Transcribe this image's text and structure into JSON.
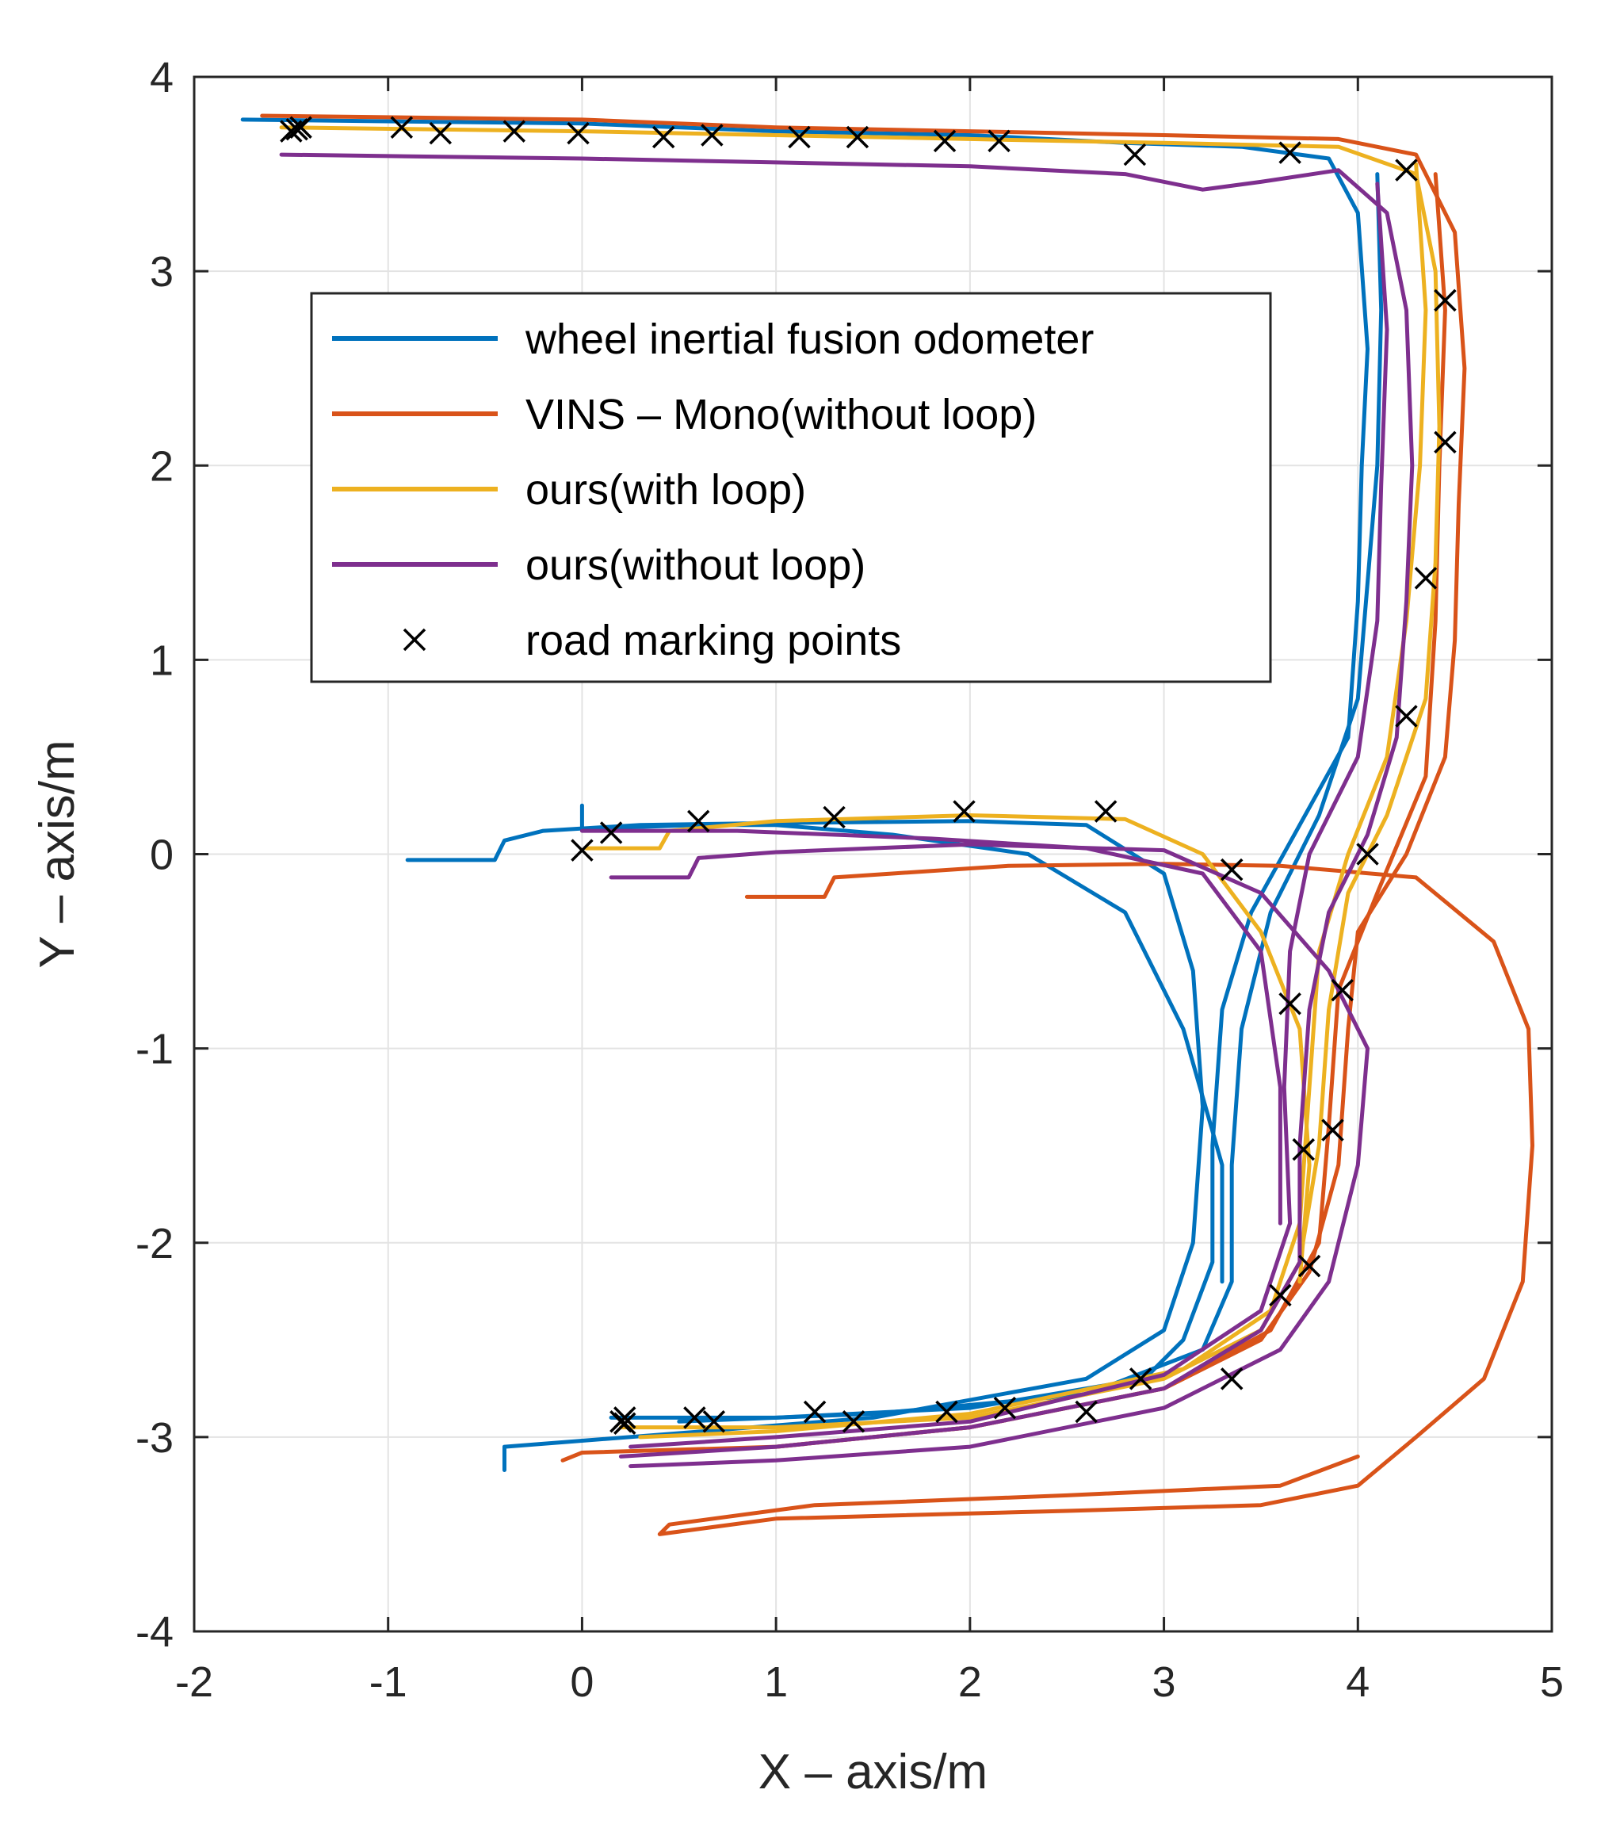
{
  "chart_data": {
    "type": "line",
    "title": "",
    "xlabel": "X – axis/m",
    "ylabel": "Y – axis/m",
    "xlim": [
      -2,
      5
    ],
    "ylim": [
      -4,
      4
    ],
    "xticks": [
      "-2",
      "-1",
      "0",
      "1",
      "2",
      "3",
      "4",
      "5"
    ],
    "yticks": [
      "4",
      "3",
      "2",
      "1",
      "0",
      "-1",
      "-2",
      "-3",
      "-4"
    ],
    "grid": true,
    "legend_position": "upper-left inside axes",
    "series": [
      {
        "name": "wheel inertial fusion odometer",
        "color": "#0072BD",
        "paths": [
          [
            [
              -1.75,
              3.78
            ],
            [
              0,
              3.76
            ],
            [
              1,
              3.72
            ],
            [
              2,
              3.7
            ],
            [
              2.8,
              3.66
            ],
            [
              3.4,
              3.64
            ],
            [
              3.85,
              3.58
            ],
            [
              4.0,
              3.3
            ],
            [
              4.05,
              2.6
            ],
            [
              4.02,
              2.0
            ],
            [
              4.0,
              1.3
            ],
            [
              3.95,
              0.6
            ],
            [
              3.7,
              0.15
            ],
            [
              3.45,
              -0.3
            ],
            [
              3.3,
              -0.8
            ],
            [
              3.25,
              -1.5
            ],
            [
              3.25,
              -2.1
            ],
            [
              3.1,
              -2.5
            ],
            [
              2.9,
              -2.7
            ],
            [
              2.0,
              -2.85
            ],
            [
              1.0,
              -2.9
            ],
            [
              0.15,
              -2.9
            ]
          ],
          [
            [
              4.1,
              3.5
            ],
            [
              4.12,
              2.8
            ],
            [
              4.1,
              2.0
            ],
            [
              4.0,
              0.8
            ],
            [
              3.8,
              0.2
            ],
            [
              3.55,
              -0.3
            ],
            [
              3.4,
              -0.9
            ],
            [
              3.35,
              -1.6
            ],
            [
              3.35,
              -2.2
            ],
            [
              3.2,
              -2.55
            ],
            [
              2.6,
              -2.78
            ],
            [
              1.5,
              -2.88
            ],
            [
              0.5,
              -2.92
            ]
          ],
          [
            [
              -0.9,
              -0.03
            ],
            [
              -0.45,
              -0.03
            ],
            [
              -0.4,
              0.07
            ],
            [
              -0.2,
              0.12
            ],
            [
              0.3,
              0.15
            ],
            [
              1.0,
              0.16
            ],
            [
              2.0,
              0.17
            ],
            [
              2.6,
              0.15
            ],
            [
              3.0,
              -0.1
            ],
            [
              3.15,
              -0.6
            ],
            [
              3.2,
              -1.3
            ],
            [
              3.15,
              -2.0
            ],
            [
              3.0,
              -2.45
            ],
            [
              2.6,
              -2.7
            ],
            [
              1.5,
              -2.9
            ],
            [
              0.5,
              -2.98
            ],
            [
              -0.4,
              -3.05
            ],
            [
              -0.4,
              -3.17
            ]
          ],
          [
            [
              0.0,
              0.25
            ],
            [
              0.0,
              0.13
            ],
            [
              0.6,
              0.15
            ],
            [
              1.0,
              0.15
            ],
            [
              1.6,
              0.1
            ],
            [
              2.3,
              0.0
            ],
            [
              2.8,
              -0.3
            ],
            [
              3.1,
              -0.9
            ],
            [
              3.3,
              -1.6
            ],
            [
              3.3,
              -2.2
            ]
          ]
        ]
      },
      {
        "name": "VINS – Mono(without loop)",
        "color": "#D95319",
        "paths": [
          [
            [
              -1.65,
              3.8
            ],
            [
              0,
              3.78
            ],
            [
              1,
              3.74
            ],
            [
              2,
              3.72
            ],
            [
              3.0,
              3.7
            ],
            [
              3.9,
              3.68
            ],
            [
              4.3,
              3.6
            ],
            [
              4.5,
              3.2
            ],
            [
              4.55,
              2.5
            ],
            [
              4.52,
              1.8
            ],
            [
              4.5,
              1.1
            ],
            [
              4.45,
              0.5
            ],
            [
              4.25,
              0.0
            ],
            [
              4.0,
              -0.4
            ],
            [
              3.95,
              -0.9
            ],
            [
              3.9,
              -1.6
            ],
            [
              3.75,
              -2.15
            ],
            [
              3.5,
              -2.5
            ],
            [
              3.0,
              -2.75
            ],
            [
              2.0,
              -2.95
            ],
            [
              1.0,
              -3.05
            ],
            [
              0.0,
              -3.08
            ],
            [
              -0.1,
              -3.12
            ]
          ],
          [
            [
              4.4,
              3.5
            ],
            [
              4.45,
              2.8
            ],
            [
              4.42,
              2.0
            ],
            [
              4.4,
              1.2
            ],
            [
              4.35,
              0.4
            ],
            [
              4.1,
              -0.2
            ],
            [
              3.9,
              -0.7
            ],
            [
              3.85,
              -1.4
            ],
            [
              3.8,
              -2.0
            ],
            [
              3.55,
              -2.45
            ],
            [
              3.0,
              -2.75
            ],
            [
              2.0,
              -2.95
            ],
            [
              1.0,
              -3.05
            ]
          ],
          [
            [
              0.85,
              -0.22
            ],
            [
              1.25,
              -0.22
            ],
            [
              1.3,
              -0.12
            ],
            [
              1.6,
              -0.1
            ],
            [
              2.2,
              -0.06
            ],
            [
              3.0,
              -0.05
            ],
            [
              3.6,
              -0.06
            ],
            [
              4.3,
              -0.12
            ],
            [
              4.7,
              -0.45
            ],
            [
              4.88,
              -0.9
            ],
            [
              4.9,
              -1.5
            ],
            [
              4.85,
              -2.2
            ],
            [
              4.65,
              -2.7
            ],
            [
              4.3,
              -3.0
            ],
            [
              4.0,
              -3.25
            ],
            [
              3.5,
              -3.35
            ],
            [
              2.5,
              -3.38
            ],
            [
              1.0,
              -3.42
            ],
            [
              0.4,
              -3.5
            ],
            [
              0.45,
              -3.45
            ],
            [
              1.2,
              -3.35
            ],
            [
              2.5,
              -3.3
            ],
            [
              3.6,
              -3.25
            ],
            [
              4.0,
              -3.1
            ]
          ]
        ]
      },
      {
        "name": "ours(with loop)",
        "color": "#EDB120",
        "paths": [
          [
            [
              -1.55,
              3.74
            ],
            [
              0,
              3.72
            ],
            [
              1,
              3.7
            ],
            [
              2,
              3.68
            ],
            [
              3.0,
              3.66
            ],
            [
              3.9,
              3.64
            ],
            [
              4.3,
              3.5
            ],
            [
              4.4,
              3.0
            ],
            [
              4.42,
              2.2
            ],
            [
              4.4,
              1.5
            ],
            [
              4.35,
              0.8
            ],
            [
              4.15,
              0.2
            ],
            [
              3.95,
              -0.2
            ],
            [
              3.85,
              -0.8
            ],
            [
              3.8,
              -1.5
            ],
            [
              3.7,
              -2.1
            ],
            [
              3.5,
              -2.45
            ],
            [
              3.0,
              -2.7
            ],
            [
              2.0,
              -2.9
            ],
            [
              1.0,
              -2.95
            ],
            [
              0.2,
              -2.95
            ]
          ],
          [
            [
              4.3,
              3.55
            ],
            [
              4.35,
              2.8
            ],
            [
              4.32,
              2.0
            ],
            [
              4.25,
              1.2
            ],
            [
              4.15,
              0.5
            ],
            [
              3.95,
              0.0
            ],
            [
              3.8,
              -0.5
            ],
            [
              3.75,
              -1.2
            ],
            [
              3.7,
              -1.9
            ],
            [
              3.55,
              -2.35
            ],
            [
              3.1,
              -2.65
            ],
            [
              2.0,
              -2.88
            ],
            [
              1.0,
              -2.97
            ],
            [
              0.3,
              -3.0
            ]
          ],
          [
            [
              0.02,
              0.03
            ],
            [
              0.4,
              0.03
            ],
            [
              0.45,
              0.12
            ],
            [
              1.0,
              0.17
            ],
            [
              2.0,
              0.2
            ],
            [
              2.8,
              0.18
            ],
            [
              3.2,
              0.0
            ],
            [
              3.5,
              -0.4
            ],
            [
              3.7,
              -0.9
            ],
            [
              3.75,
              -1.6
            ],
            [
              3.7,
              -2.2
            ]
          ]
        ]
      },
      {
        "name": "ours(without loop)",
        "color": "#7E2F8E",
        "paths": [
          [
            [
              -1.55,
              3.6
            ],
            [
              0,
              3.58
            ],
            [
              1,
              3.56
            ],
            [
              2,
              3.54
            ],
            [
              2.8,
              3.5
            ],
            [
              3.2,
              3.42
            ],
            [
              3.5,
              3.46
            ],
            [
              3.9,
              3.52
            ],
            [
              4.15,
              3.3
            ],
            [
              4.25,
              2.8
            ],
            [
              4.28,
              2.0
            ],
            [
              4.25,
              1.3
            ],
            [
              4.2,
              0.6
            ],
            [
              4.05,
              0.1
            ],
            [
              3.85,
              -0.3
            ],
            [
              3.75,
              -0.8
            ],
            [
              3.7,
              -1.5
            ],
            [
              3.7,
              -2.1
            ],
            [
              3.5,
              -2.45
            ],
            [
              3.0,
              -2.75
            ],
            [
              2.0,
              -2.95
            ],
            [
              1.0,
              -3.05
            ],
            [
              0.2,
              -3.1
            ]
          ],
          [
            [
              4.1,
              3.45
            ],
            [
              4.15,
              2.7
            ],
            [
              4.12,
              1.9
            ],
            [
              4.1,
              1.2
            ],
            [
              4.0,
              0.5
            ],
            [
              3.75,
              0.0
            ],
            [
              3.65,
              -0.5
            ],
            [
              3.62,
              -1.2
            ],
            [
              3.65,
              -1.9
            ],
            [
              3.5,
              -2.35
            ],
            [
              3.0,
              -2.68
            ],
            [
              2.0,
              -2.92
            ],
            [
              1.0,
              -3.0
            ],
            [
              0.25,
              -3.05
            ]
          ],
          [
            [
              0.15,
              -0.12
            ],
            [
              0.55,
              -0.12
            ],
            [
              0.6,
              -0.02
            ],
            [
              1.0,
              0.01
            ],
            [
              2.0,
              0.05
            ],
            [
              3.0,
              0.02
            ],
            [
              3.5,
              -0.2
            ],
            [
              3.85,
              -0.6
            ],
            [
              4.05,
              -1.0
            ],
            [
              4.0,
              -1.6
            ],
            [
              3.85,
              -2.2
            ],
            [
              3.6,
              -2.55
            ],
            [
              3.0,
              -2.85
            ],
            [
              2.0,
              -3.05
            ],
            [
              1.0,
              -3.12
            ],
            [
              0.25,
              -3.15
            ]
          ],
          [
            [
              0.0,
              0.12
            ],
            [
              0.8,
              0.12
            ],
            [
              1.8,
              0.08
            ],
            [
              2.6,
              0.03
            ],
            [
              3.2,
              -0.1
            ],
            [
              3.5,
              -0.5
            ],
            [
              3.6,
              -1.2
            ],
            [
              3.6,
              -1.9
            ]
          ]
        ]
      }
    ],
    "road_marking_points": {
      "name": "road marking points",
      "marker": "x",
      "color": "#000000",
      "x": [
        -1.5,
        -1.47,
        -1.45,
        -0.93,
        -0.73,
        -0.35,
        -0.02,
        0.42,
        0.67,
        1.12,
        1.42,
        1.87,
        2.15,
        2.85,
        3.65,
        4.25,
        4.45,
        4.45,
        4.35,
        4.25,
        4.05,
        3.35,
        3.65,
        3.92,
        3.72,
        3.87,
        3.75,
        3.6,
        3.35,
        2.88,
        2.6,
        2.18,
        1.88,
        1.4,
        1.2,
        0.68,
        0.58,
        0.22,
        0.22,
        0.2,
        0.0,
        0.15,
        0.6,
        1.3,
        1.97,
        2.7
      ],
      "y": [
        3.72,
        3.73,
        3.74,
        3.74,
        3.71,
        3.72,
        3.71,
        3.69,
        3.7,
        3.69,
        3.69,
        3.67,
        3.67,
        3.6,
        3.61,
        3.52,
        2.85,
        2.12,
        1.42,
        0.71,
        0.0,
        -0.08,
        -0.77,
        -0.7,
        -1.52,
        -1.42,
        -2.12,
        -2.27,
        -2.7,
        -2.7,
        -2.87,
        -2.85,
        -2.87,
        -2.92,
        -2.87,
        -2.92,
        -2.9,
        -2.9,
        -2.93,
        -2.92,
        0.02,
        0.11,
        0.17,
        0.19,
        0.22,
        0.22
      ]
    }
  }
}
